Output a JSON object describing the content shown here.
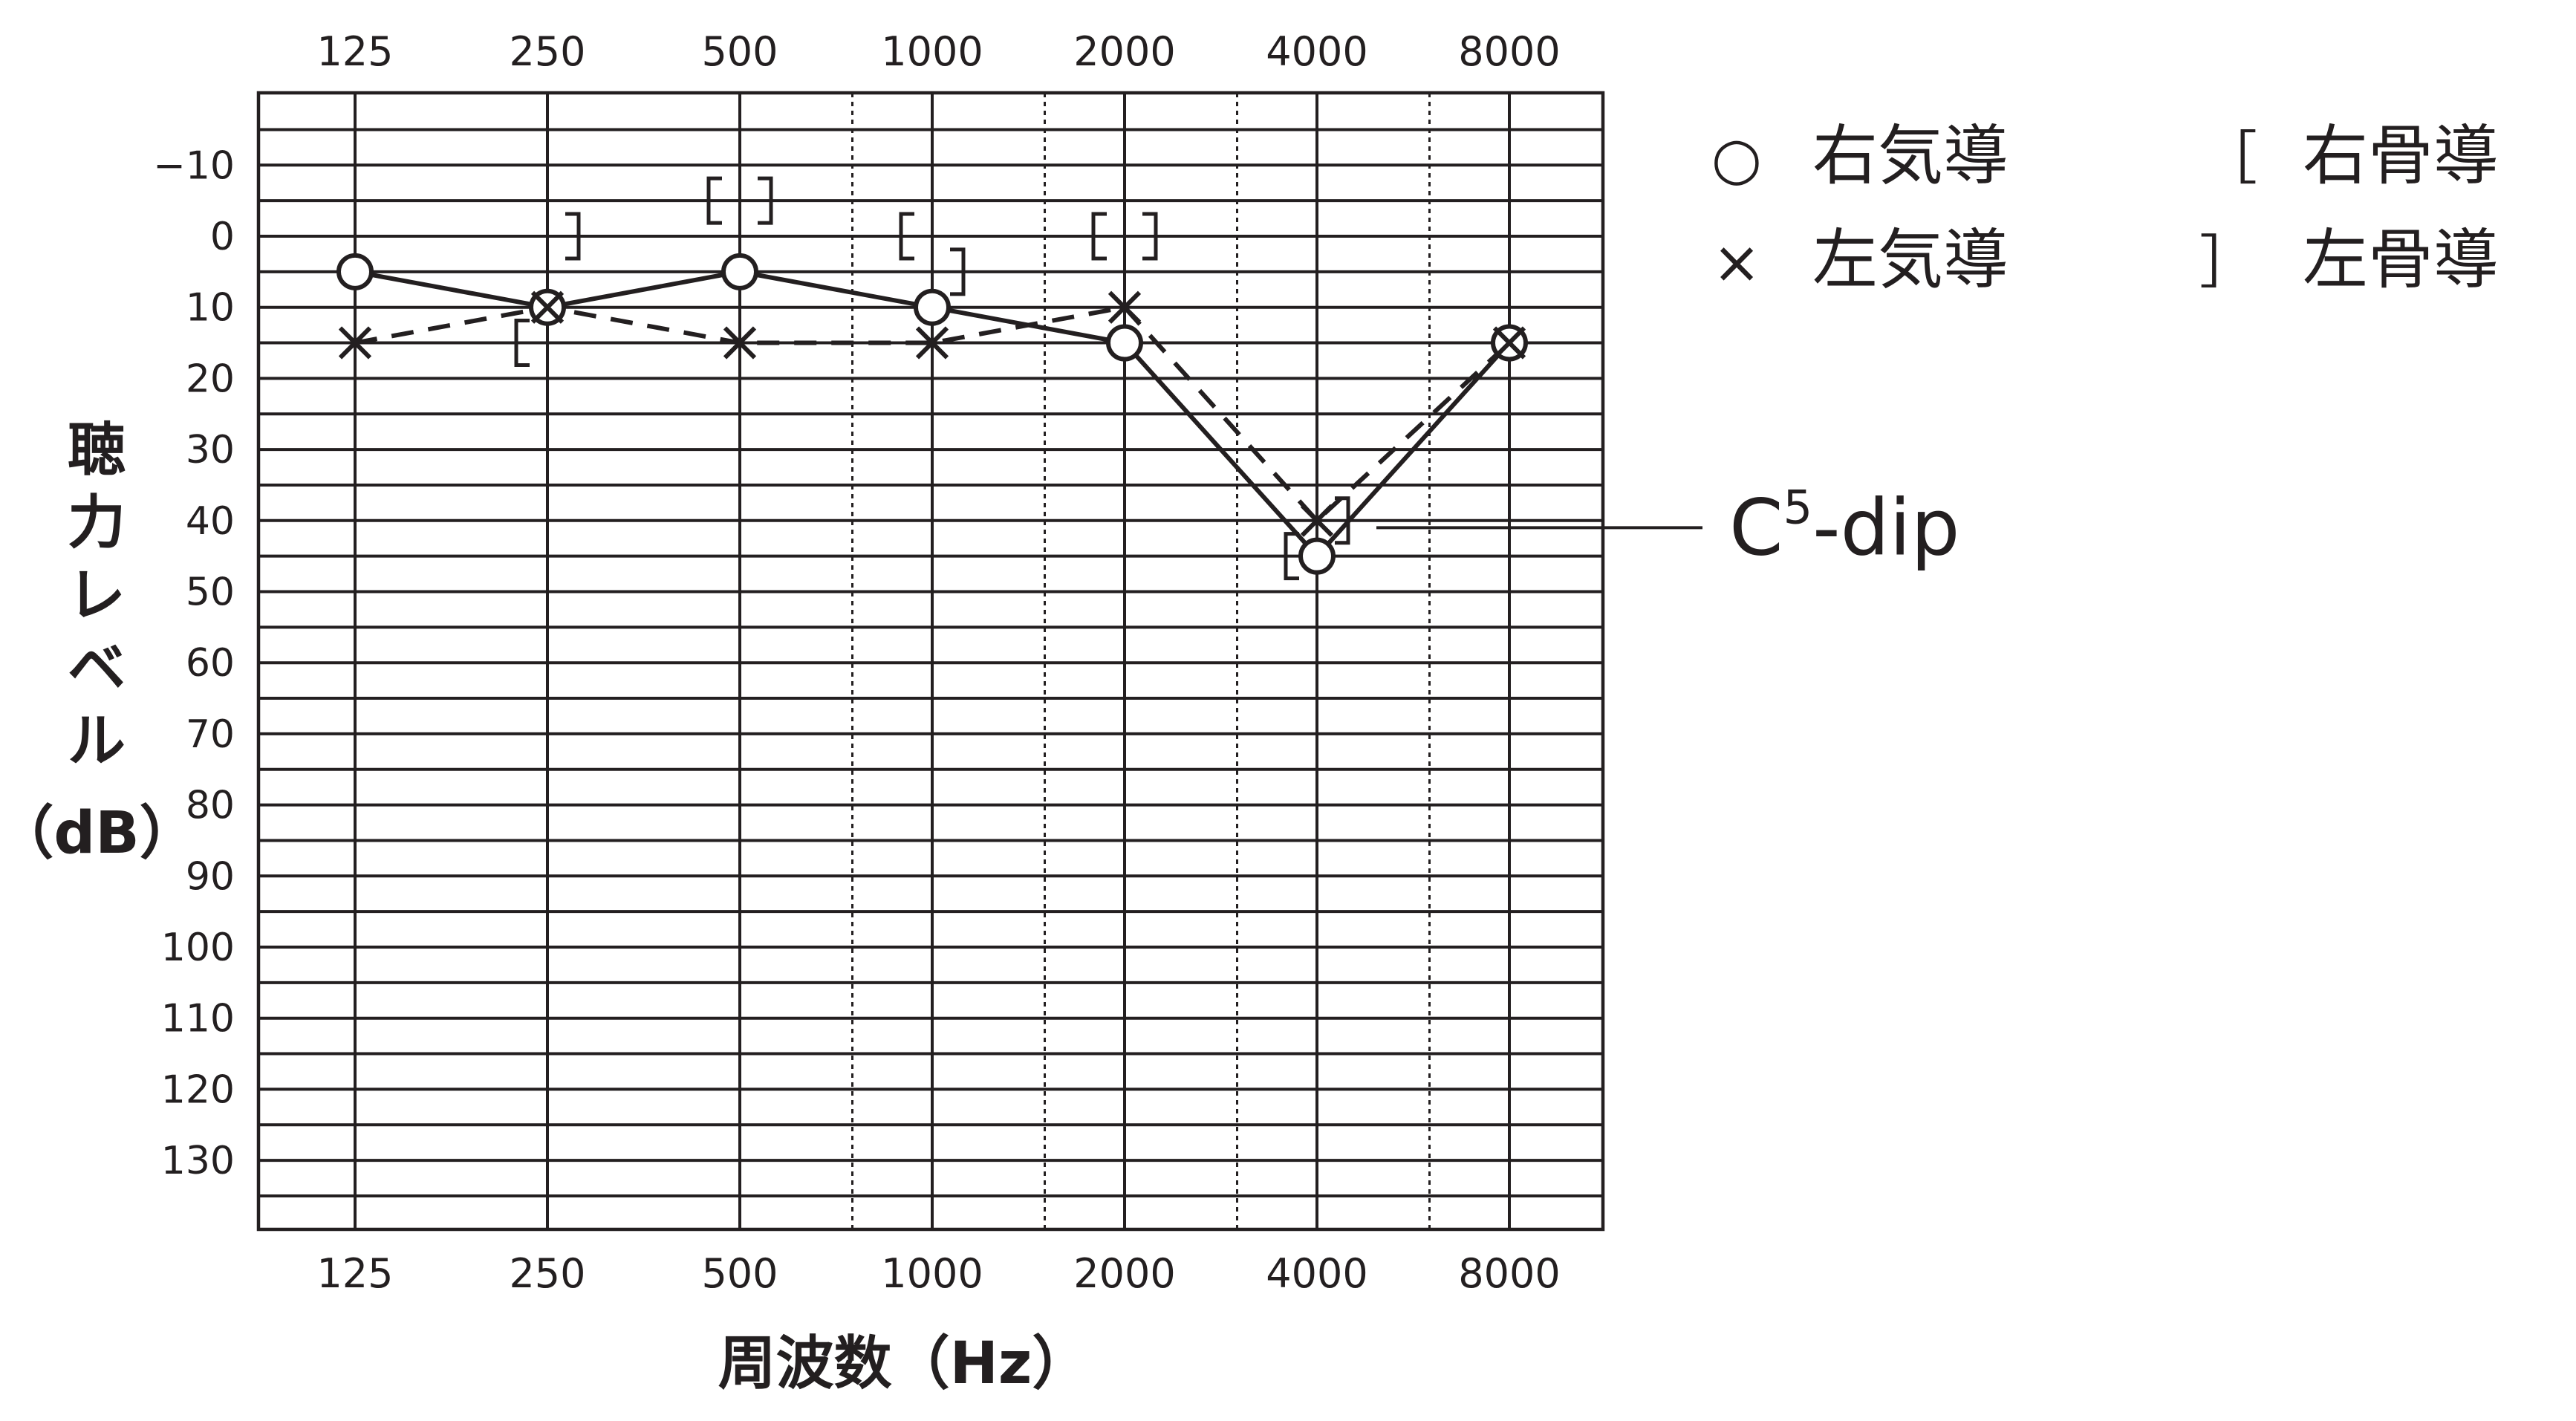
{
  "chart_data": {
    "type": "line",
    "title": "",
    "xlabel": "周波数（Hz）",
    "ylabel_chars": [
      "聴",
      "力",
      "レ",
      "ベ",
      "ル"
    ],
    "ylabel_unit": "（dB）",
    "x_scale": "log2",
    "y_inverted": true,
    "x_ticks": [
      "125",
      "250",
      "500",
      "1000",
      "2000",
      "4000",
      "8000"
    ],
    "y_ticks": [
      "−10",
      "0",
      "10",
      "20",
      "30",
      "40",
      "50",
      "60",
      "70",
      "80",
      "90",
      "100",
      "110",
      "120",
      "130"
    ],
    "ylim": [
      -20,
      140
    ],
    "grid": true,
    "dotted_grid_x": [
      750,
      1500,
      3000,
      6000
    ],
    "legend_position": "right",
    "legend": [
      {
        "symbol": "○",
        "label": "右気導"
      },
      {
        "symbol": "×",
        "label": "左気導"
      },
      {
        "symbol": "［",
        "label": "右骨導"
      },
      {
        "symbol": "］",
        "label": "左骨導"
      }
    ],
    "series": [
      {
        "name": "右気導",
        "marker": "circle",
        "line": "solid",
        "points": [
          {
            "x": 125,
            "y": 5
          },
          {
            "x": 250,
            "y": 10
          },
          {
            "x": 500,
            "y": 5
          },
          {
            "x": 1000,
            "y": 10
          },
          {
            "x": 2000,
            "y": 15
          },
          {
            "x": 4000,
            "y": 45
          },
          {
            "x": 8000,
            "y": 15
          }
        ]
      },
      {
        "name": "左気導",
        "marker": "cross",
        "line": "dashed",
        "points": [
          {
            "x": 125,
            "y": 15
          },
          {
            "x": 250,
            "y": 10
          },
          {
            "x": 500,
            "y": 15
          },
          {
            "x": 1000,
            "y": 15
          },
          {
            "x": 2000,
            "y": 10
          },
          {
            "x": 4000,
            "y": 40
          },
          {
            "x": 8000,
            "y": 15
          }
        ]
      },
      {
        "name": "右骨導",
        "marker": "bracket-left",
        "line": "none",
        "points": [
          {
            "x": 250,
            "y": 15
          },
          {
            "x": 500,
            "y": -5
          },
          {
            "x": 1000,
            "y": 0
          },
          {
            "x": 2000,
            "y": 0
          },
          {
            "x": 4000,
            "y": 45
          }
        ]
      },
      {
        "name": "左骨導",
        "marker": "bracket-right",
        "line": "none",
        "points": [
          {
            "x": 250,
            "y": 0
          },
          {
            "x": 500,
            "y": -5
          },
          {
            "x": 1000,
            "y": 5
          },
          {
            "x": 2000,
            "y": 0
          },
          {
            "x": 4000,
            "y": 40
          }
        ]
      }
    ],
    "annotations": [
      {
        "text": "C",
        "superscript": "5",
        "suffix": "-dip",
        "x": 4000,
        "y": 41
      }
    ]
  }
}
